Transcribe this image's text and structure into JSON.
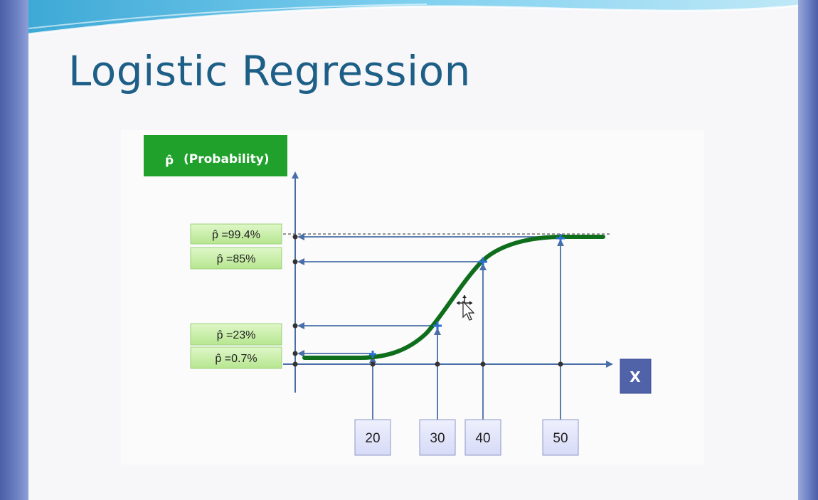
{
  "slide": {
    "title": "Logistic Regression"
  },
  "diagram": {
    "y_header": {
      "hat_symbol": "p̂",
      "label": "(Probability)"
    },
    "x_axis_label": "X",
    "probability_labels": [
      "p̂ =99.4%",
      "p̂ =85%",
      "p̂ =23%",
      "p̂ =0.7%"
    ],
    "x_ticks": [
      "20",
      "30",
      "40",
      "50"
    ],
    "colors": {
      "title": "#1d5f86",
      "header_green": "#1fa12b",
      "label_green": "#c6efa6",
      "curve": "#0f6e1b",
      "axis": "#4a6fa8",
      "x_box": "#5063a8",
      "tick_box": "#e3e6fa"
    }
  }
}
